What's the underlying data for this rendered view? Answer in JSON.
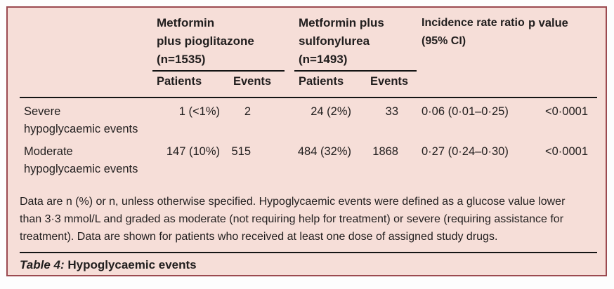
{
  "panel": {
    "background": "#f6ded8",
    "border_color": "#9b4a50",
    "rule_color": "#141414",
    "text_color": "#211e1e"
  },
  "table": {
    "groups": [
      {
        "line1": "Metformin",
        "line2": "plus pioglitazone",
        "line3": "(n=1535)"
      },
      {
        "line1": "Metformin plus",
        "line2": "sulfonylurea",
        "line3": "(n=1493)"
      }
    ],
    "columns": {
      "patients": "Patients",
      "events": "Events",
      "irr_line1": "Incidence rate ratio",
      "irr_line2": "(95% CI)",
      "p_value": "p value"
    },
    "rows": [
      {
        "label_line1": "Severe",
        "label_line2": "hypoglycaemic events",
        "g1_patients": "1 (<1%)",
        "g1_events": "2",
        "g2_patients": "24 (2%)",
        "g2_events": "33",
        "irr": "0·06 (0·01–0·25)",
        "p": "<0·0001"
      },
      {
        "label_line1": "Moderate",
        "label_line2": "hypoglycaemic events",
        "g1_patients": "147 (10%)",
        "g1_events": "515",
        "g2_patients": "484 (32%)",
        "g2_events": "1868",
        "irr": "0·27 (0·24–0·30)",
        "p": "<0·0001"
      }
    ]
  },
  "footnote": "Data are n (%) or n, unless otherwise specified. Hypoglycaemic events were defined as a glucose value lower than 3·3 mmol/L and graded as moderate (not requiring help for treatment) or severe (requiring assistance for treatment). Data are shown for patients who received at least one dose of assigned study drugs.",
  "caption": {
    "label": "Table 4:",
    "title": " Hypoglycaemic events"
  }
}
